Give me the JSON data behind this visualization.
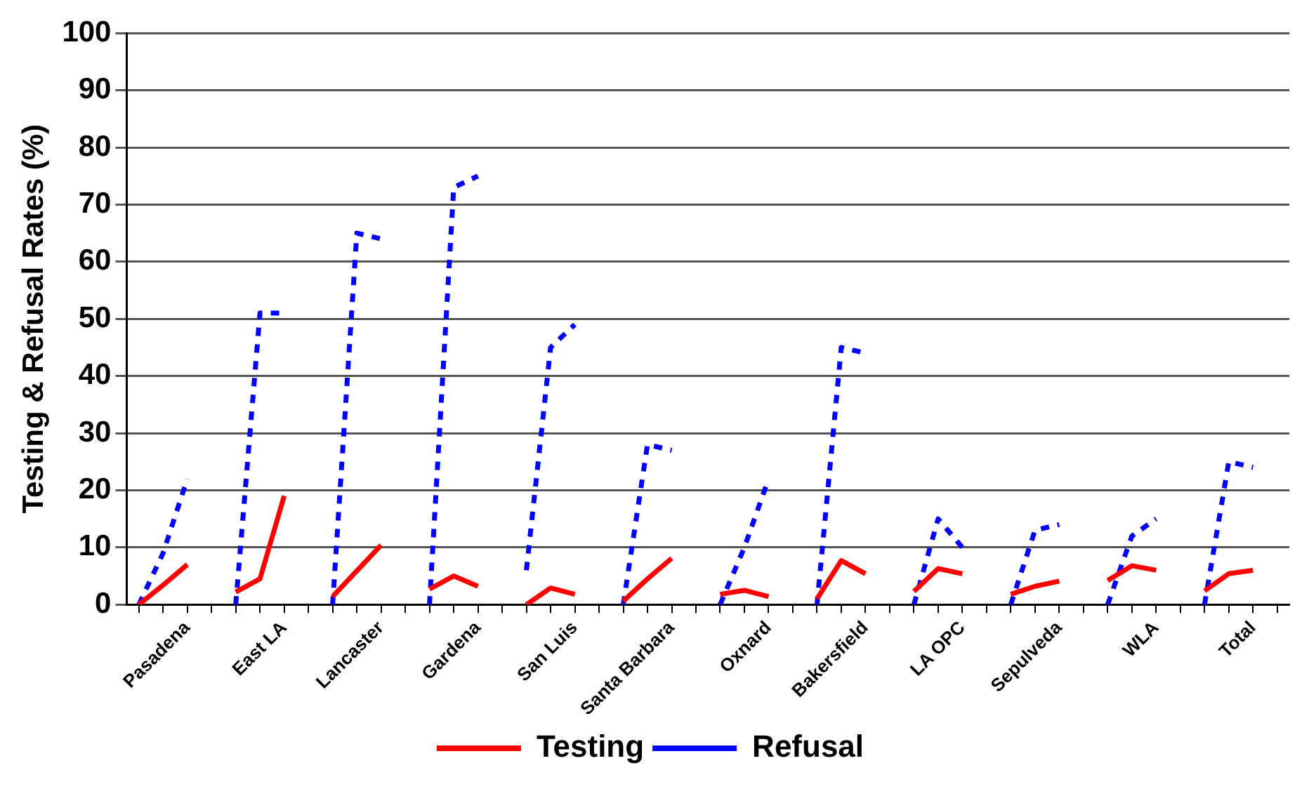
{
  "chart_data": {
    "type": "line",
    "ylabel": "Testing & Refusal Rates (%)",
    "categories": [
      null,
      null,
      "Pasadena",
      null,
      null,
      null,
      "East LA",
      null,
      null,
      null,
      "Lancaster",
      null,
      null,
      null,
      "Gardena",
      null,
      null,
      null,
      "San Luis",
      null,
      null,
      null,
      "Santa Barbara",
      null,
      null,
      null,
      "Oxnard",
      null,
      null,
      null,
      "Bakersfield",
      null,
      null,
      null,
      "LA OPC",
      null,
      null,
      null,
      "Sepulveda",
      null,
      null,
      null,
      "WLA",
      null,
      null,
      null,
      "Total",
      null
    ],
    "series": [
      {
        "name": "Testing",
        "color": "#ff0000",
        "line_style": "solid",
        "values": [
          0,
          3.4,
          7,
          null,
          2.2,
          4.5,
          19,
          null,
          1.4,
          5.9,
          10.4,
          null,
          2.7,
          5,
          3.2,
          null,
          0,
          2.9,
          1.8,
          null,
          0.6,
          4.5,
          8.1,
          null,
          1.8,
          2.5,
          1.4,
          null,
          1,
          7.7,
          5.4,
          null,
          2.3,
          6.3,
          5.4,
          null,
          1.8,
          3.2,
          4.1,
          null,
          4.2,
          6.8,
          6,
          null,
          2.4,
          5.4,
          6,
          null
        ]
      },
      {
        "name": "Refusal",
        "color": "#0000ff",
        "line_style": "dashed",
        "values": [
          0,
          9,
          22,
          null,
          0,
          51,
          51,
          null,
          0,
          65,
          64,
          null,
          0,
          73,
          75,
          null,
          6,
          45,
          49,
          null,
          0,
          28,
          27,
          null,
          0,
          10,
          22,
          null,
          0,
          45,
          44,
          null,
          0,
          15,
          10,
          null,
          0,
          13,
          14,
          null,
          0,
          12,
          15,
          null,
          0,
          25,
          24,
          null
        ]
      }
    ],
    "ylim": [
      0,
      100
    ],
    "yticks": [
      0,
      10,
      20,
      30,
      40,
      50,
      60,
      70,
      80,
      90,
      100
    ],
    "grid": "y",
    "legend": "bottom",
    "marker": "none"
  }
}
